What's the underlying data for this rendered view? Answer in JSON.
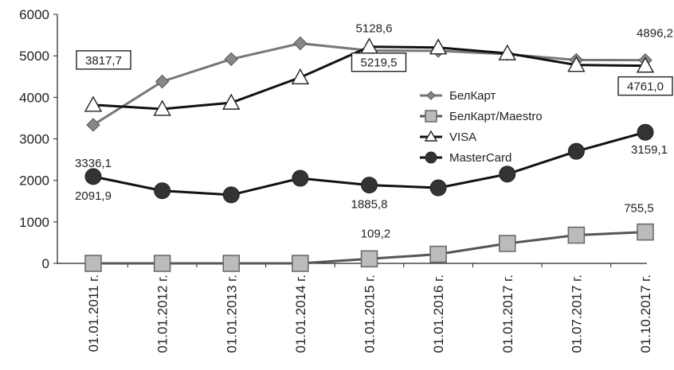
{
  "chart_data": {
    "type": "line",
    "categories": [
      "01.01.2011 г.",
      "01.01.2012 г.",
      "01.01.2013 г.",
      "01.01.2014 г.",
      "01.01.2015 г.",
      "01.01.2016 г.",
      "01.01.2017 г.",
      "01.07.2017 г.",
      "01.10.2017 г."
    ],
    "ylim": [
      0,
      6000
    ],
    "yticks": [
      "0",
      "1000",
      "2000",
      "3000",
      "4000",
      "5000",
      "6000"
    ],
    "grid": false,
    "legend_position": "right",
    "series": [
      {
        "name": "БелКарт",
        "marker": "diamond",
        "line_color": "#777777",
        "marker_color": "#888888",
        "values": [
          3336.1,
          4380,
          4920,
          5300,
          5128.6,
          5120,
          5040,
          4900,
          4896.2
        ]
      },
      {
        "name": "БелКарт/Maestro",
        "marker": "square",
        "line_color": "#555555",
        "marker_color": "#bbbbbb",
        "values": [
          0,
          0,
          0,
          0,
          109.2,
          220,
          480,
          680,
          755.5
        ]
      },
      {
        "name": "VISA",
        "marker": "triangle",
        "line_color": "#111111",
        "marker_color": "#ffffff",
        "values": [
          3817.7,
          3720,
          3870,
          4480,
          5219.5,
          5200,
          5060,
          4780,
          4761.0
        ]
      },
      {
        "name": "MasterCard",
        "marker": "circle",
        "line_color": "#111111",
        "marker_color": "#333333",
        "values": [
          2091.9,
          1750,
          1650,
          2050,
          1885.8,
          1820,
          2150,
          2700,
          3159.1
        ]
      }
    ],
    "annotations": [
      {
        "text": "3817,7",
        "series": 2,
        "index": 0,
        "boxed": true
      },
      {
        "text": "3336,1",
        "series": 0,
        "index": 0,
        "boxed": false
      },
      {
        "text": "2091,9",
        "series": 3,
        "index": 0,
        "boxed": false
      },
      {
        "text": "5128,6",
        "series": 0,
        "index": 4,
        "boxed": false
      },
      {
        "text": "5219,5",
        "series": 2,
        "index": 4,
        "boxed": true
      },
      {
        "text": "1885,8",
        "series": 3,
        "index": 4,
        "boxed": false
      },
      {
        "text": "109,2",
        "series": 1,
        "index": 4,
        "boxed": false
      },
      {
        "text": "4896,2",
        "series": 0,
        "index": 8,
        "boxed": false
      },
      {
        "text": "4761,0",
        "series": 2,
        "index": 8,
        "boxed": true
      },
      {
        "text": "3159,1",
        "series": 3,
        "index": 8,
        "boxed": false
      },
      {
        "text": "755,5",
        "series": 1,
        "index": 8,
        "boxed": false
      }
    ]
  }
}
